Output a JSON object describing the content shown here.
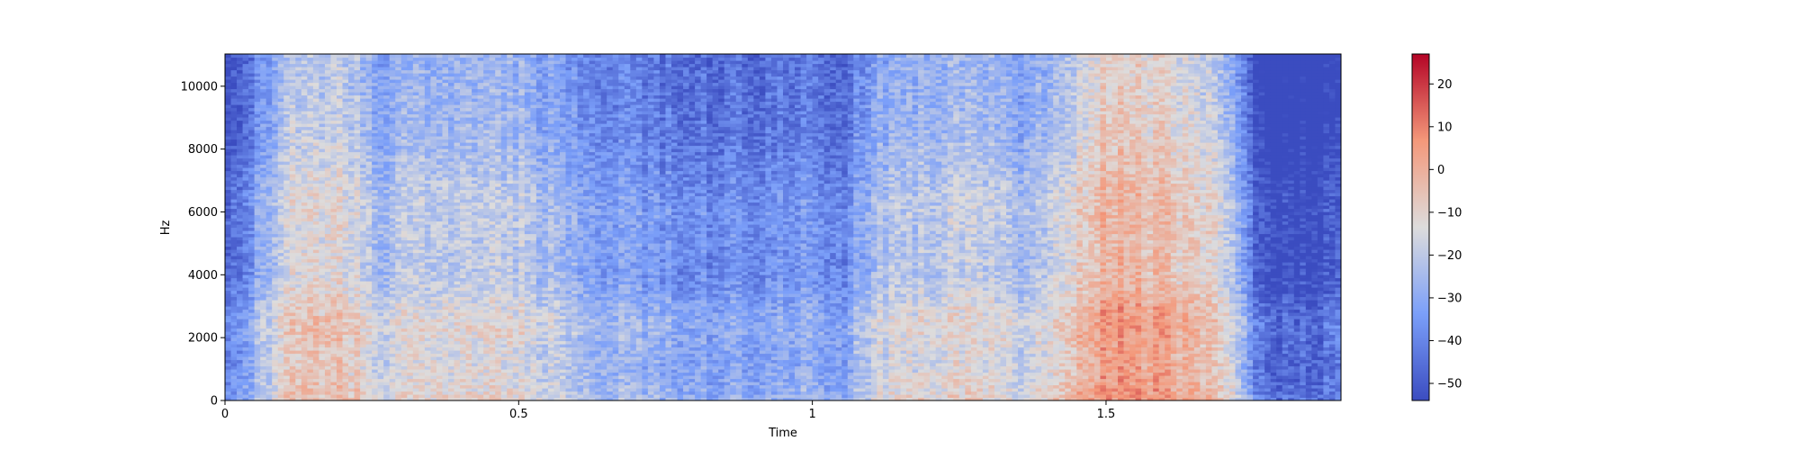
{
  "chart_data": {
    "type": "heatmap",
    "title": "",
    "xlabel": "Time",
    "ylabel": "Hz",
    "xlim": [
      0,
      1.9
    ],
    "ylim": [
      0,
      11025
    ],
    "x_ticks": [
      0,
      0.5,
      1,
      1.5
    ],
    "x_tick_labels": [
      "0",
      "0.5",
      "1",
      "1.5"
    ],
    "y_ticks": [
      0,
      2000,
      4000,
      6000,
      8000,
      10000
    ],
    "y_tick_labels": [
      "0",
      "2000",
      "4000",
      "6000",
      "8000",
      "10000"
    ],
    "colormap": "coolwarm",
    "colorbar": {
      "range": [
        -54,
        27
      ],
      "ticks": [
        20,
        10,
        0,
        -10,
        -20,
        -30,
        -40,
        -50
      ],
      "tick_labels": [
        "20",
        "10",
        "0",
        "−10",
        "−20",
        "−30",
        "−40",
        "−50"
      ]
    },
    "grid": false,
    "level_profile": {
      "time_sec": [
        0,
        0.05,
        0.1,
        0.2,
        0.27,
        0.3,
        0.4,
        0.5,
        0.6,
        0.7,
        0.8,
        0.9,
        1.0,
        1.05,
        1.1,
        1.2,
        1.3,
        1.35,
        1.4,
        1.5,
        1.6,
        1.7,
        1.75,
        1.8,
        1.9
      ],
      "peak_level_db": [
        -40,
        -25,
        -5,
        -2,
        -15,
        -12,
        -8,
        -10,
        -20,
        -25,
        -28,
        -28,
        -25,
        -30,
        -15,
        -10,
        -8,
        -15,
        -10,
        10,
        5,
        -5,
        -35,
        -45,
        -40
      ]
    }
  }
}
